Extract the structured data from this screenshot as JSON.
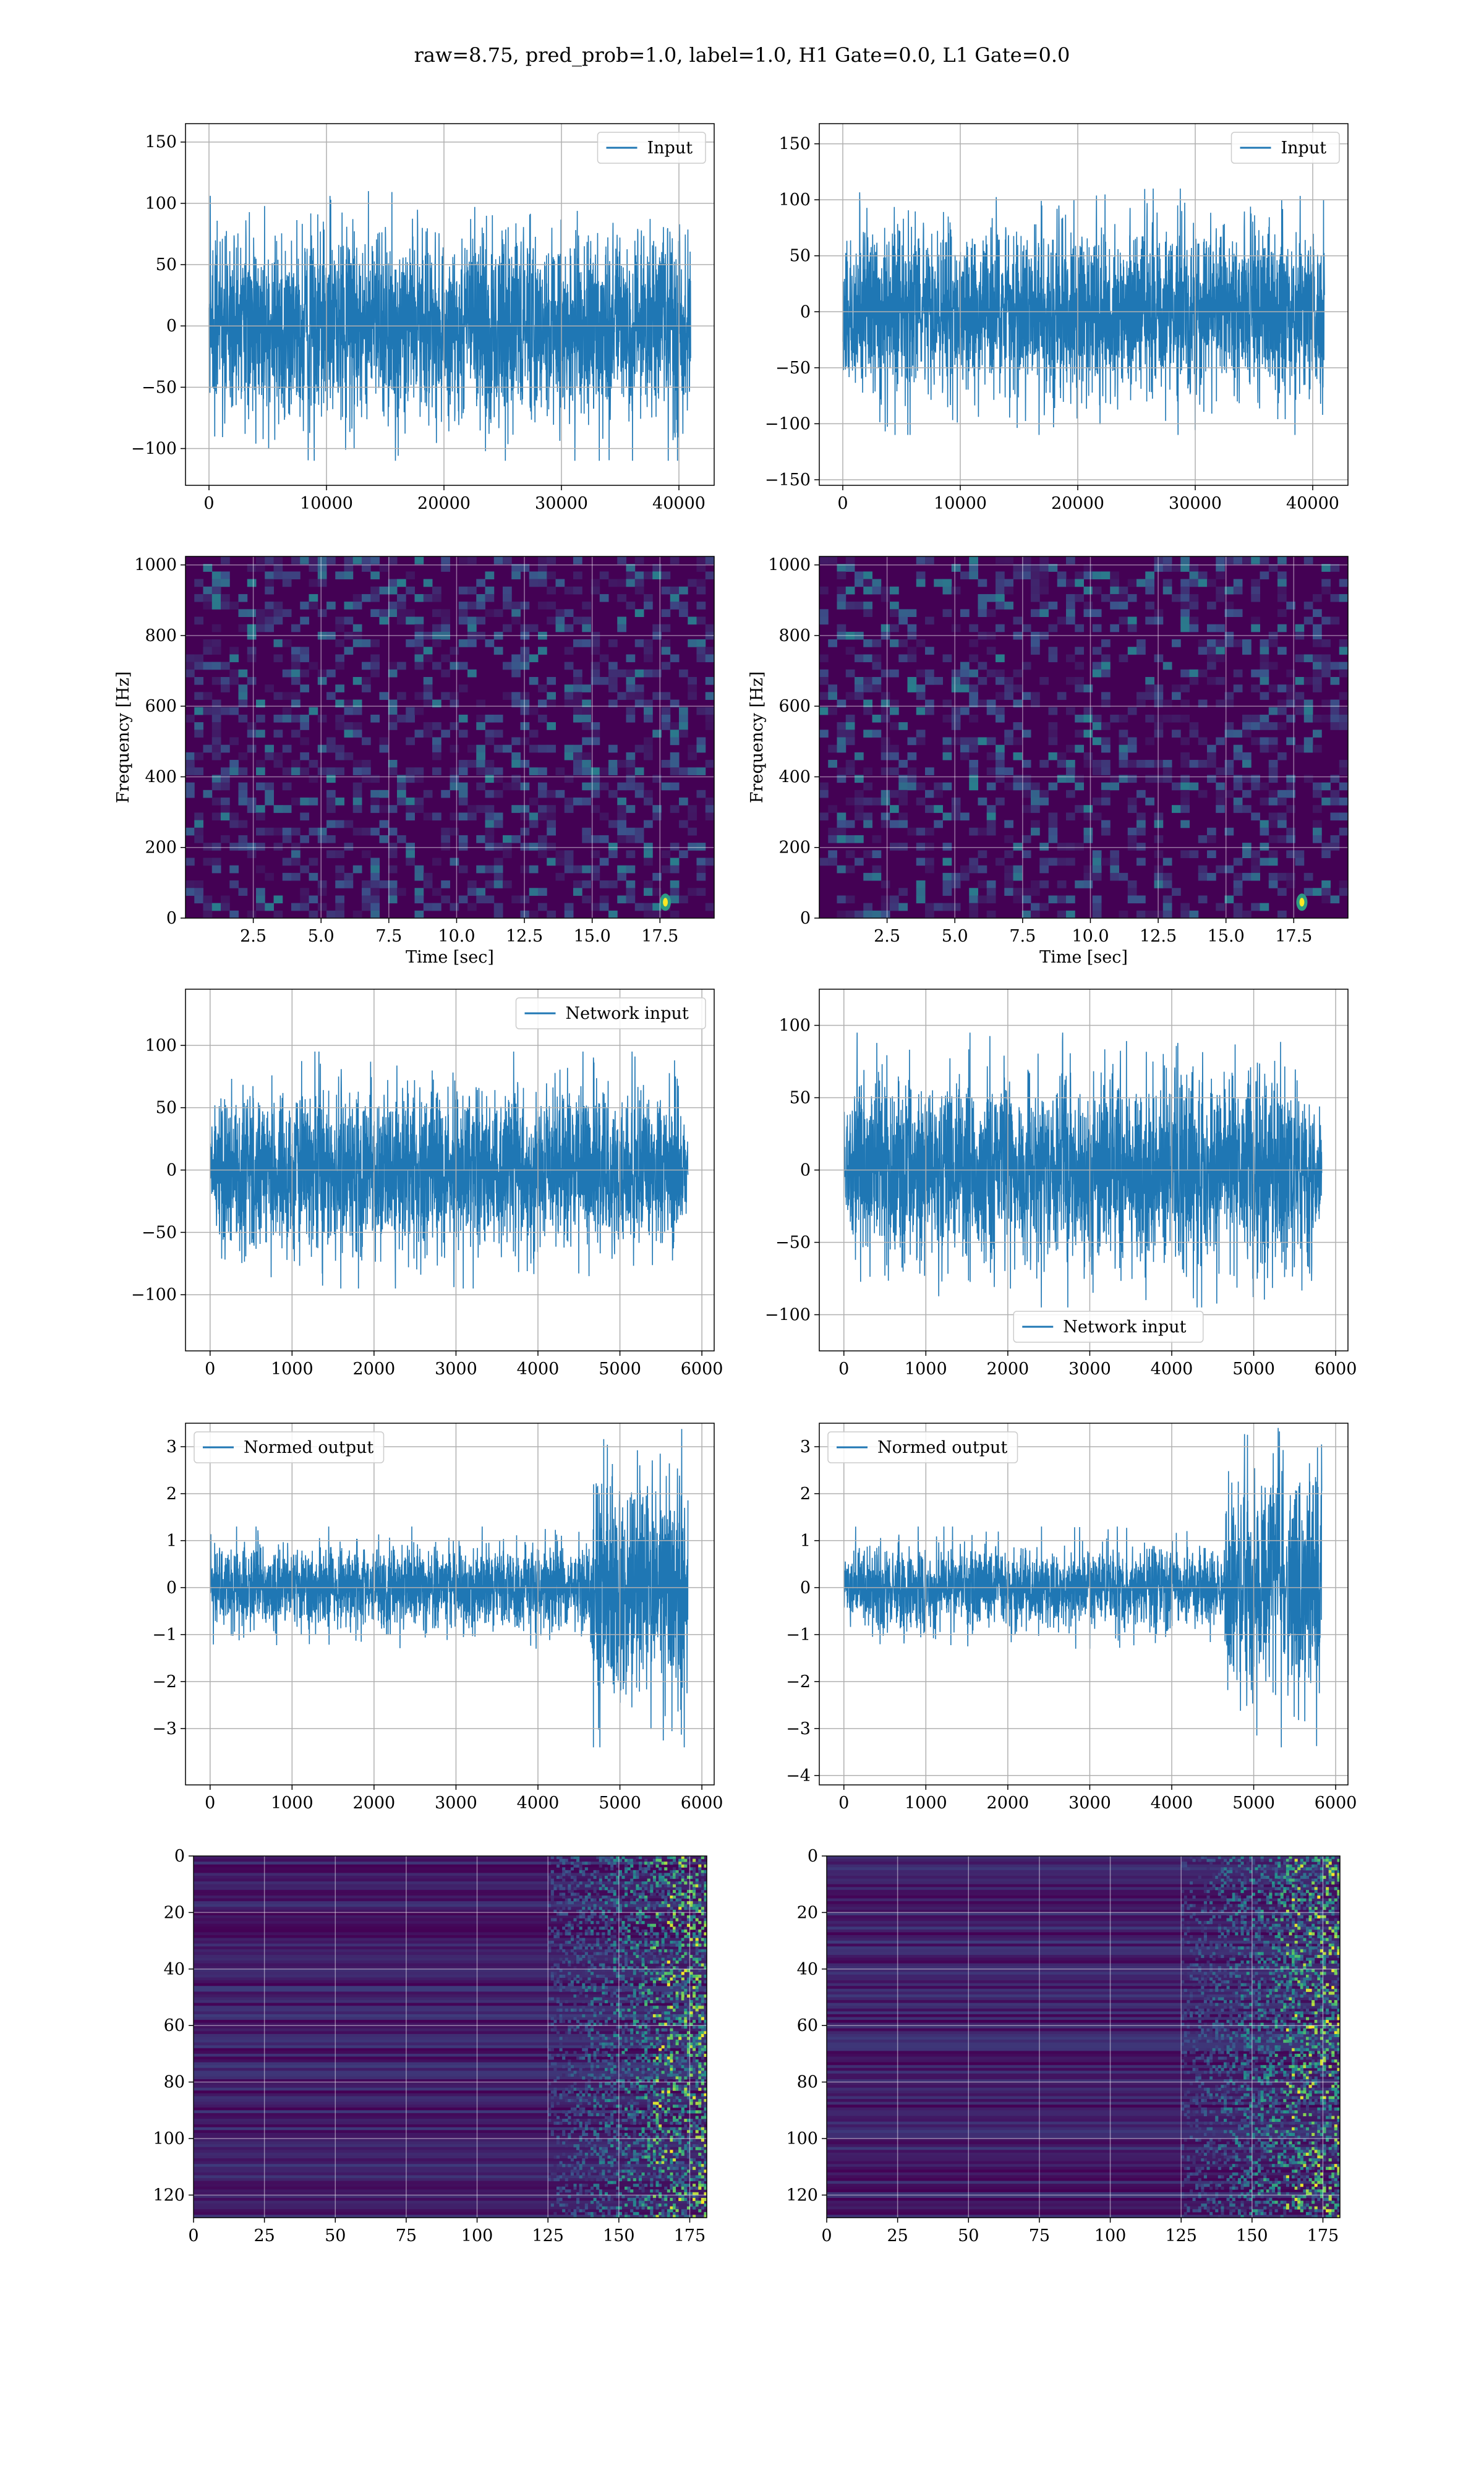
{
  "figure": {
    "suptitle": "raw=8.75, pred_prob=1.0, label=1.0, H1 Gate=0.0, L1 Gate=0.0",
    "colors": {
      "line": "#1f77b4",
      "grid": "#b0b0b0",
      "viridis_low": "#440154",
      "viridis_mid": "#21918c",
      "viridis_high": "#fde725"
    }
  },
  "chart_data": [
    {
      "id": "input-h1",
      "type": "line",
      "signal": "noise",
      "xlim": [
        -2000,
        43000
      ],
      "ylim": [
        -130,
        165
      ],
      "xticks": [
        0,
        10000,
        20000,
        30000,
        40000
      ],
      "yticks": [
        -100,
        -50,
        0,
        50,
        100,
        150
      ],
      "x_range": [
        0,
        41000
      ],
      "amplitude": 110,
      "envelope": "flat",
      "grid": true,
      "legend_position": "top-right",
      "series": [
        {
          "name": "Input"
        }
      ],
      "xlabel": "",
      "ylabel": ""
    },
    {
      "id": "input-l1",
      "type": "line",
      "signal": "noise",
      "xlim": [
        -2000,
        43000
      ],
      "ylim": [
        -155,
        168
      ],
      "xticks": [
        0,
        10000,
        20000,
        30000,
        40000
      ],
      "yticks": [
        -150,
        -100,
        -50,
        0,
        50,
        100,
        150
      ],
      "x_range": [
        0,
        41000
      ],
      "amplitude": 110,
      "envelope": "flat",
      "grid": true,
      "legend_position": "top-right",
      "series": [
        {
          "name": "Input"
        }
      ],
      "xlabel": "",
      "ylabel": ""
    },
    {
      "id": "spectrogram-h1",
      "type": "heatmap",
      "variant": "spectrogram",
      "xlim": [
        0,
        19.5
      ],
      "ylim": [
        0,
        1024
      ],
      "xticks": [
        2.5,
        5.0,
        7.5,
        10.0,
        12.5,
        15.0,
        17.5
      ],
      "xtick_labels": [
        "2.5",
        "5.0",
        "7.5",
        "10.0",
        "12.5",
        "15.0",
        "17.5"
      ],
      "yticks": [
        0,
        200,
        400,
        600,
        800,
        1000
      ],
      "xlabel": "Time [sec]",
      "ylabel": "Frequency [Hz]",
      "hotspot": {
        "x": 17.7,
        "y": 45
      },
      "grid": true,
      "colormap": "viridis"
    },
    {
      "id": "spectrogram-l1",
      "type": "heatmap",
      "variant": "spectrogram",
      "xlim": [
        0,
        19.5
      ],
      "ylim": [
        0,
        1024
      ],
      "xticks": [
        2.5,
        5.0,
        7.5,
        10.0,
        12.5,
        15.0,
        17.5
      ],
      "xtick_labels": [
        "2.5",
        "5.0",
        "7.5",
        "10.0",
        "12.5",
        "15.0",
        "17.5"
      ],
      "yticks": [
        0,
        200,
        400,
        600,
        800,
        1000
      ],
      "xlabel": "Time [sec]",
      "ylabel": "Frequency [Hz]",
      "hotspot": {
        "x": 17.8,
        "y": 45
      },
      "grid": true,
      "colormap": "viridis"
    },
    {
      "id": "network-input-h1",
      "type": "line",
      "signal": "noise",
      "xlim": [
        -300,
        6150
      ],
      "ylim": [
        -145,
        145
      ],
      "xticks": [
        0,
        1000,
        2000,
        3000,
        4000,
        5000,
        6000
      ],
      "yticks": [
        -100,
        -50,
        0,
        50,
        100
      ],
      "x_range": [
        0,
        5830
      ],
      "amplitude": 95,
      "envelope": "taper",
      "grid": true,
      "legend_position": "top-right",
      "series": [
        {
          "name": "Network input"
        }
      ],
      "xlabel": "",
      "ylabel": ""
    },
    {
      "id": "network-input-l1",
      "type": "line",
      "signal": "noise",
      "xlim": [
        -300,
        6150
      ],
      "ylim": [
        -125,
        125
      ],
      "xticks": [
        0,
        1000,
        2000,
        3000,
        4000,
        5000,
        6000
      ],
      "yticks": [
        -100,
        -50,
        0,
        50,
        100
      ],
      "x_range": [
        0,
        5830
      ],
      "amplitude": 95,
      "envelope": "taper",
      "grid": true,
      "legend_position": "lower-center",
      "series": [
        {
          "name": "Network input"
        }
      ],
      "xlabel": "",
      "ylabel": ""
    },
    {
      "id": "normed-output-h1",
      "type": "line",
      "signal": "noise",
      "xlim": [
        -300,
        6150
      ],
      "ylim": [
        -4.2,
        3.5
      ],
      "xticks": [
        0,
        1000,
        2000,
        3000,
        4000,
        5000,
        6000
      ],
      "yticks": [
        -3,
        -2,
        -1,
        0,
        1,
        2,
        3
      ],
      "x_range": [
        0,
        5830
      ],
      "amplitude": 1.3,
      "envelope": "burst",
      "burst_start": 4650,
      "burst_amplitude": 3.4,
      "grid": true,
      "legend_position": "top-left",
      "series": [
        {
          "name": "Normed output"
        }
      ],
      "xlabel": "",
      "ylabel": ""
    },
    {
      "id": "normed-output-l1",
      "type": "line",
      "signal": "noise",
      "xlim": [
        -300,
        6150
      ],
      "ylim": [
        -4.2,
        3.5
      ],
      "xticks": [
        0,
        1000,
        2000,
        3000,
        4000,
        5000,
        6000
      ],
      "yticks": [
        -4,
        -3,
        -2,
        -1,
        0,
        1,
        2,
        3
      ],
      "x_range": [
        0,
        5830
      ],
      "amplitude": 1.3,
      "envelope": "burst",
      "burst_start": 4650,
      "burst_amplitude": 3.4,
      "grid": true,
      "legend_position": "top-left",
      "series": [
        {
          "name": "Normed output"
        }
      ],
      "xlabel": "",
      "ylabel": ""
    },
    {
      "id": "feature-map-h1",
      "type": "heatmap",
      "variant": "feature-map",
      "xlim": [
        0,
        181
      ],
      "ylim": [
        128,
        0
      ],
      "xticks": [
        0,
        25,
        50,
        75,
        100,
        125,
        150,
        175
      ],
      "yticks": [
        0,
        20,
        40,
        60,
        80,
        100,
        120
      ],
      "active_from": 125,
      "grid": true,
      "colormap": "viridis",
      "xlabel": "",
      "ylabel": ""
    },
    {
      "id": "feature-map-l1",
      "type": "heatmap",
      "variant": "feature-map",
      "xlim": [
        0,
        181
      ],
      "ylim": [
        128,
        0
      ],
      "xticks": [
        0,
        25,
        50,
        75,
        100,
        125,
        150,
        175
      ],
      "yticks": [
        0,
        20,
        40,
        60,
        80,
        100,
        120
      ],
      "active_from": 125,
      "grid": true,
      "colormap": "viridis",
      "xlabel": "",
      "ylabel": ""
    }
  ]
}
